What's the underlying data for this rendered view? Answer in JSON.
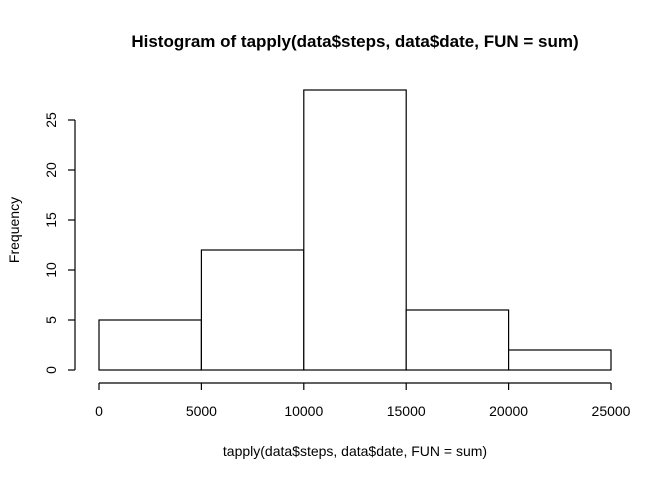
{
  "chart_data": {
    "type": "bar",
    "title": "Histogram of tapply(data$steps, data$date, FUN = sum)",
    "xlabel": "tapply(data$steps, data$date, FUN = sum)",
    "ylabel": "Frequency",
    "bins": [
      {
        "start": 0,
        "end": 5000,
        "value": 5
      },
      {
        "start": 5000,
        "end": 10000,
        "value": 12
      },
      {
        "start": 10000,
        "end": 15000,
        "value": 28
      },
      {
        "start": 15000,
        "end": 20000,
        "value": 6
      },
      {
        "start": 20000,
        "end": 25000,
        "value": 2
      }
    ],
    "xlim": [
      0,
      25000
    ],
    "ylim": [
      0,
      28
    ],
    "x_ticks": [
      0,
      5000,
      10000,
      15000,
      20000,
      25000
    ],
    "y_ticks": [
      0,
      5,
      10,
      15,
      20,
      25
    ],
    "grid": false,
    "legend": "none",
    "colors": {
      "bar_fill": "#ffffff",
      "bar_stroke": "#000000"
    }
  }
}
